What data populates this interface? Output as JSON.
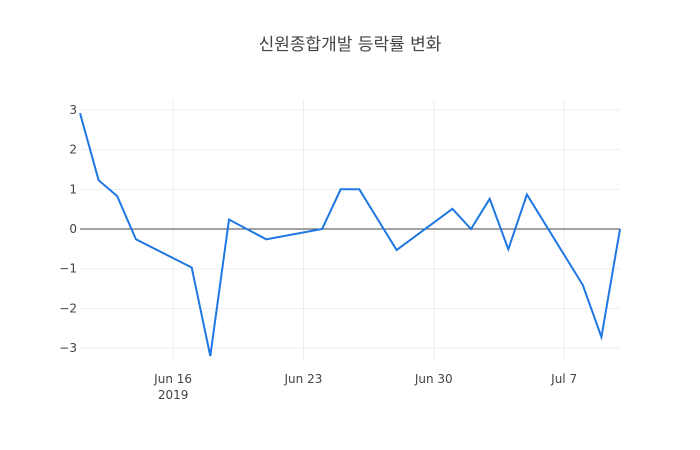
{
  "chart_data": {
    "type": "line",
    "title": "신원종합개발 등락률 변화",
    "xlabel": "",
    "ylabel": "",
    "x": [
      "2019-06-11",
      "2019-06-12",
      "2019-06-13",
      "2019-06-14",
      "2019-06-17",
      "2019-06-18",
      "2019-06-19",
      "2019-06-21",
      "2019-06-24",
      "2019-06-25",
      "2019-06-26",
      "2019-06-28",
      "2019-07-01",
      "2019-07-02",
      "2019-07-03",
      "2019-07-04",
      "2019-07-05",
      "2019-07-08",
      "2019-07-09",
      "2019-07-10"
    ],
    "series": [
      {
        "name": "등락률",
        "color": "#1f77e4",
        "values": [
          2.92,
          1.23,
          0.83,
          -0.26,
          -0.97,
          -3.2,
          0.24,
          -0.26,
          0.0,
          1.0,
          1.0,
          -0.53,
          0.51,
          0.0,
          0.76,
          -0.51,
          0.87,
          -1.41,
          -2.72,
          0.0
        ]
      }
    ],
    "ylim": [
      -3.3,
      3.25
    ],
    "xlim": [
      "2019-06-11",
      "2019-07-10"
    ],
    "yticks": [
      3,
      2,
      1,
      0,
      -1,
      -2,
      -3
    ],
    "ytick_labels": [
      "3",
      "2",
      "1",
      "0",
      "−1",
      "−2",
      "−3"
    ],
    "xticks": [
      "2019-06-16",
      "2019-06-23",
      "2019-06-30",
      "2019-07-07"
    ],
    "xtick_labels": [
      "Jun 16",
      "Jun 23",
      "Jun 30",
      "Jul 7"
    ],
    "xtick_sublabel": "2019",
    "grid": true,
    "zero_line": true,
    "legend": false
  },
  "colors": {
    "line": "#1f77e4",
    "grid": "#eeeeee",
    "zeroline": "#444444",
    "text": "#444444"
  }
}
